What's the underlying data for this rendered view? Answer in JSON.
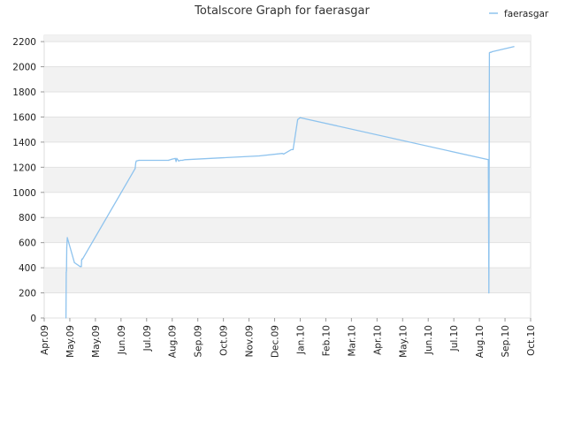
{
  "chart_data": {
    "type": "line",
    "title": "Totalscore Graph for faerasgar",
    "xlabel": "",
    "ylabel": "",
    "x_axis_labels": [
      "Apr.09",
      "May.09",
      "May.09",
      "Jun.09",
      "Jul.09",
      "Aug.09",
      "Sep.09",
      "Oct.09",
      "Nov.09",
      "Dec.09",
      "Jan.10",
      "Feb.10",
      "Mar.10",
      "Apr.10",
      "May.10",
      "Jun.10",
      "Jul.10",
      "Aug.10",
      "Sep.10",
      "Oct.10"
    ],
    "x_range": [
      0,
      19
    ],
    "y_ticks": [
      0,
      200,
      400,
      600,
      800,
      1000,
      1200,
      1400,
      1600,
      1800,
      2000,
      2200
    ],
    "ylim": [
      0,
      2250
    ],
    "grid": "horizontal",
    "alternating_bands": true,
    "legend_position": "top-right",
    "series": [
      {
        "name": "faerasgar",
        "color": "#8ec3ee",
        "x": [
          0.85,
          0.86,
          0.87,
          0.88,
          0.9,
          1.18,
          1.4,
          1.45,
          1.46,
          1.48,
          1.5,
          3.55,
          3.58,
          3.6,
          3.7,
          4.85,
          5.0,
          5.12,
          5.15,
          5.18,
          5.25,
          5.32,
          5.4,
          5.5,
          8.4,
          9.3,
          9.35,
          9.65,
          9.72,
          9.9,
          10.0,
          17.35,
          17.37,
          17.39,
          17.42,
          17.45,
          17.5,
          18.35
        ],
        "y": [
          0,
          360,
          380,
          560,
          640,
          440,
          410,
          410,
          460,
          470,
          470,
          1190,
          1240,
          1250,
          1255,
          1255,
          1265,
          1270,
          1245,
          1270,
          1250,
          1255,
          1255,
          1260,
          1290,
          1310,
          1305,
          1340,
          1340,
          1580,
          1595,
          1260,
          200,
          2110,
          2115,
          2115,
          2120,
          2160
        ]
      }
    ]
  }
}
